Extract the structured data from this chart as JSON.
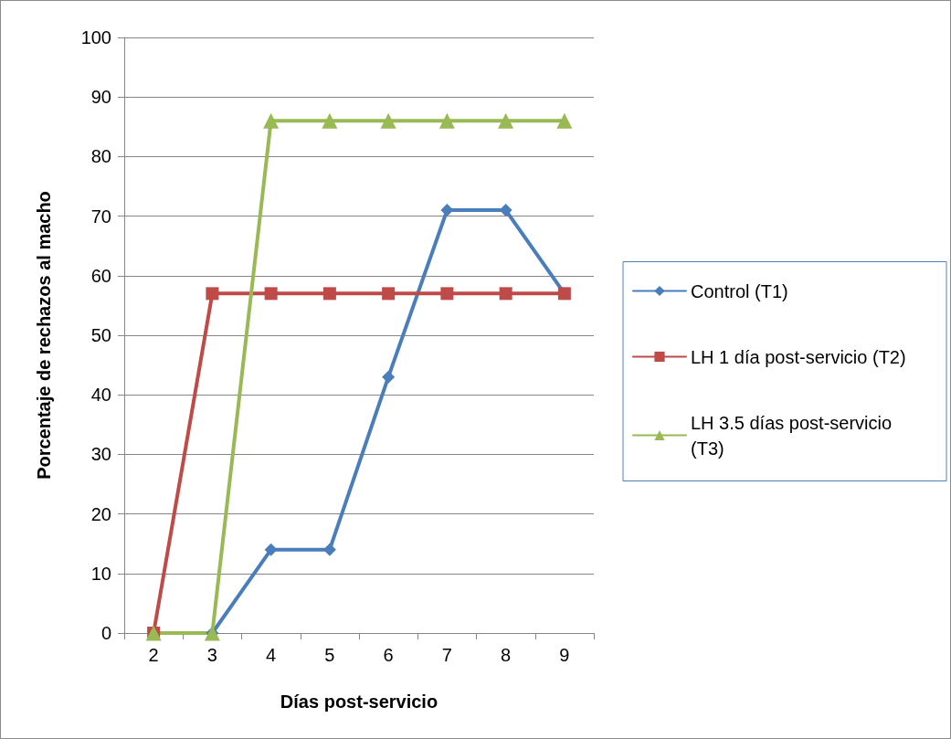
{
  "chart_data": {
    "type": "line",
    "xlabel": "Días post-servicio",
    "ylabel": "Porcentaje de rechazos al macho",
    "categories": [
      "2",
      "3",
      "4",
      "5",
      "6",
      "7",
      "8",
      "9"
    ],
    "series": [
      {
        "name": "Control (T1)",
        "color": "#4a7ebb",
        "marker": "diamond",
        "values": [
          null,
          0,
          14,
          14,
          43,
          71,
          71,
          57
        ]
      },
      {
        "name": "LH 1 día post-servicio (T2)",
        "color": "#be4b48",
        "marker": "square",
        "values": [
          0,
          57,
          57,
          57,
          57,
          57,
          57,
          57
        ]
      },
      {
        "name": "LH 3.5 días post-servicio (T3)",
        "color": "#98b954",
        "marker": "triangle",
        "values": [
          0,
          0,
          86,
          86,
          86,
          86,
          86,
          86
        ]
      }
    ],
    "ylim": [
      0,
      100
    ],
    "yticks": [
      0,
      10,
      20,
      30,
      40,
      50,
      60,
      70,
      80,
      90,
      100
    ],
    "grid": "y",
    "legend": "right",
    "line_style": "solid"
  }
}
